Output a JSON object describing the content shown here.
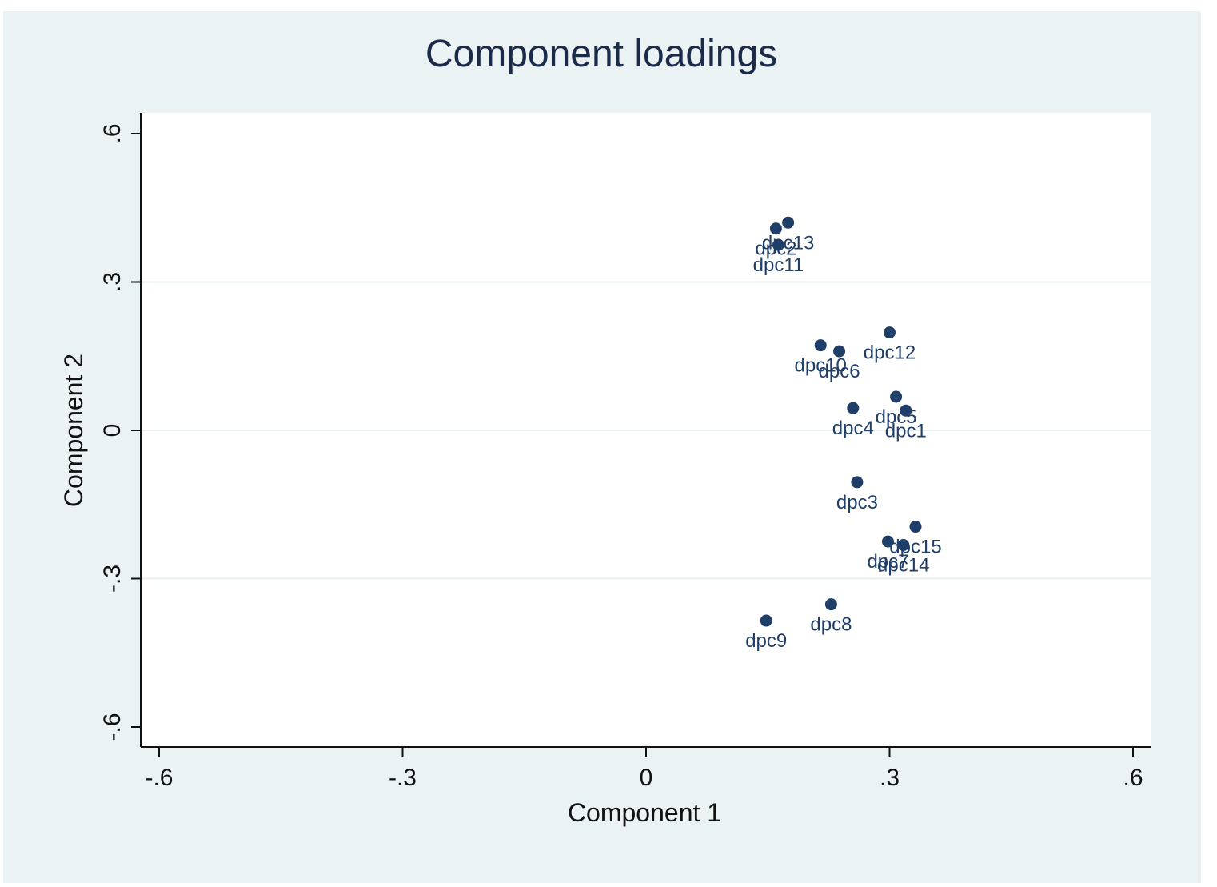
{
  "chart_data": {
    "type": "scatter",
    "title": "Component loadings",
    "xlabel": "Component 1",
    "ylabel": "Component 2",
    "xlim": [
      -0.6,
      0.6
    ],
    "ylim": [
      -0.6,
      0.6
    ],
    "xticks": [
      -0.6,
      -0.3,
      0,
      0.3,
      0.6
    ],
    "yticks": [
      -0.6,
      -0.3,
      0,
      0.3,
      0.6
    ],
    "xtick_labels": [
      "-.6",
      "-.3",
      "0",
      ".3",
      ".6"
    ],
    "ytick_labels": [
      "-.6",
      "-.3",
      "0",
      ".3",
      ".6"
    ],
    "grid": "horizontal",
    "marker_color": "#1f3f69",
    "label_color": "#1f3f69",
    "plot_background": "#ffffff",
    "frame_background": "#eaf2f3",
    "points": [
      {
        "label": "dpc1",
        "x": 0.32,
        "y": 0.04
      },
      {
        "label": "dpc2",
        "x": 0.16,
        "y": 0.408
      },
      {
        "label": "dpc3",
        "x": 0.26,
        "y": -0.105
      },
      {
        "label": "dpc4",
        "x": 0.255,
        "y": 0.045
      },
      {
        "label": "dpc5",
        "x": 0.308,
        "y": 0.068
      },
      {
        "label": "dpc6",
        "x": 0.238,
        "y": 0.16
      },
      {
        "label": "dpc7",
        "x": 0.298,
        "y": -0.225
      },
      {
        "label": "dpc8",
        "x": 0.228,
        "y": -0.352
      },
      {
        "label": "dpc9",
        "x": 0.148,
        "y": -0.385
      },
      {
        "label": "dpc10",
        "x": 0.215,
        "y": 0.172
      },
      {
        "label": "dpc11",
        "x": 0.163,
        "y": 0.375
      },
      {
        "label": "dpc12",
        "x": 0.3,
        "y": 0.198
      },
      {
        "label": "dpc13",
        "x": 0.175,
        "y": 0.42
      },
      {
        "label": "dpc14",
        "x": 0.317,
        "y": -0.232
      },
      {
        "label": "dpc15",
        "x": 0.332,
        "y": -0.195
      }
    ]
  }
}
